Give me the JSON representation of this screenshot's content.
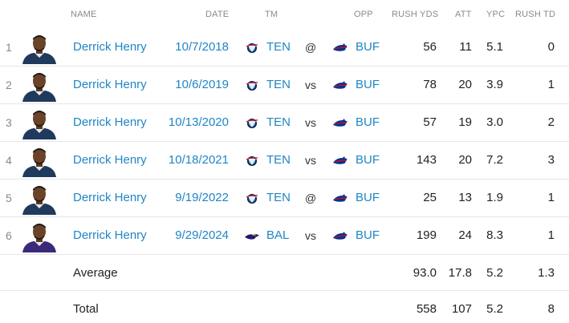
{
  "header": {
    "name": "NAME",
    "date": "DATE",
    "tm": "TM",
    "opp": "OPP",
    "rush_yds": "RUSH YDS",
    "att": "ATT",
    "ypc": "YPC",
    "rush_td": "RUSH TD"
  },
  "rows": [
    {
      "rank": "1",
      "name": "Derrick Henry",
      "date": "10/7/2018",
      "tm": "TEN",
      "tm_logo": "titans-logo-icon",
      "loc": "@",
      "opp": "BUF",
      "opp_logo": "bills-logo-icon",
      "rush_yds": "56",
      "att": "11",
      "ypc": "5.1",
      "rush_td": "0",
      "jersey_color": "#1f3a5c"
    },
    {
      "rank": "2",
      "name": "Derrick Henry",
      "date": "10/6/2019",
      "tm": "TEN",
      "tm_logo": "titans-logo-icon",
      "loc": "vs",
      "opp": "BUF",
      "opp_logo": "bills-logo-icon",
      "rush_yds": "78",
      "att": "20",
      "ypc": "3.9",
      "rush_td": "1",
      "jersey_color": "#1f3a5c"
    },
    {
      "rank": "3",
      "name": "Derrick Henry",
      "date": "10/13/2020",
      "tm": "TEN",
      "tm_logo": "titans-logo-icon",
      "loc": "vs",
      "opp": "BUF",
      "opp_logo": "bills-logo-icon",
      "rush_yds": "57",
      "att": "19",
      "ypc": "3.0",
      "rush_td": "2",
      "jersey_color": "#1f3a5c"
    },
    {
      "rank": "4",
      "name": "Derrick Henry",
      "date": "10/18/2021",
      "tm": "TEN",
      "tm_logo": "titans-logo-icon",
      "loc": "vs",
      "opp": "BUF",
      "opp_logo": "bills-logo-icon",
      "rush_yds": "143",
      "att": "20",
      "ypc": "7.2",
      "rush_td": "3",
      "jersey_color": "#1f3a5c"
    },
    {
      "rank": "5",
      "name": "Derrick Henry",
      "date": "9/19/2022",
      "tm": "TEN",
      "tm_logo": "titans-logo-icon",
      "loc": "@",
      "opp": "BUF",
      "opp_logo": "bills-logo-icon",
      "rush_yds": "25",
      "att": "13",
      "ypc": "1.9",
      "rush_td": "1",
      "jersey_color": "#1f3a5c"
    },
    {
      "rank": "6",
      "name": "Derrick Henry",
      "date": "9/29/2024",
      "tm": "BAL",
      "tm_logo": "ravens-logo-icon",
      "loc": "vs",
      "opp": "BUF",
      "opp_logo": "bills-logo-icon",
      "rush_yds": "199",
      "att": "24",
      "ypc": "8.3",
      "rush_td": "1",
      "jersey_color": "#3b2a7a"
    }
  ],
  "average": {
    "label": "Average",
    "rush_yds": "93.0",
    "att": "17.8",
    "ypc": "5.2",
    "rush_td": "1.3"
  },
  "total": {
    "label": "Total",
    "rush_yds": "558",
    "att": "107",
    "ypc": "5.2",
    "rush_td": "8"
  },
  "colors": {
    "link": "#1f86c4",
    "titans_navy": "#0c2340",
    "titans_blue": "#4b92db",
    "bills_blue": "#00338d",
    "bills_red": "#c60c30",
    "ravens_purple": "#241773"
  }
}
